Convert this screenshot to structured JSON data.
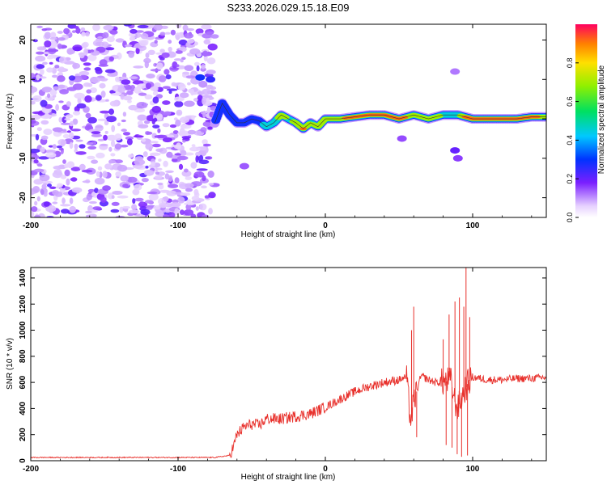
{
  "title": "S233.2026.029.15.18.E09",
  "chart_data": [
    {
      "type": "heatmap",
      "xlabel": "Height of straight line (km)",
      "ylabel": "Frequency (Hz)",
      "xlim": [
        -200,
        150
      ],
      "ylim": [
        -25,
        24
      ],
      "xticks": [
        -200,
        -100,
        0,
        100
      ],
      "yticks": [
        -20,
        -10,
        0,
        10,
        20
      ],
      "colorbar": {
        "label": "Normalized spectral amplitude",
        "range": [
          0,
          1
        ],
        "ticks": [
          0.0,
          0.2,
          0.4,
          0.6,
          0.8
        ]
      },
      "noise_region_x": [
        -200,
        -75
      ],
      "signal_trace": {
        "x": [
          -75,
          -70,
          -65,
          -60,
          -55,
          -50,
          -45,
          -40,
          -35,
          -30,
          -25,
          -20,
          -15,
          -10,
          -5,
          0,
          10,
          20,
          30,
          40,
          50,
          60,
          70,
          80,
          85,
          90,
          95,
          100,
          110,
          120,
          130,
          140,
          150
        ],
        "freq": [
          -1,
          4,
          1,
          -1,
          -1,
          0,
          -0.5,
          -2,
          -1,
          1,
          0,
          -1,
          -2.5,
          -1,
          -2,
          0,
          0,
          0.5,
          1,
          1,
          0,
          1,
          0,
          1,
          1,
          1,
          0.5,
          0,
          0,
          0,
          0,
          0.5,
          0.5
        ],
        "amp": [
          0.25,
          0.3,
          0.35,
          0.3,
          0.3,
          0.35,
          0.35,
          0.45,
          0.55,
          0.7,
          0.6,
          0.65,
          0.85,
          0.6,
          0.7,
          0.65,
          0.8,
          0.9,
          0.95,
          0.9,
          0.85,
          0.8,
          0.75,
          0.6,
          0.5,
          0.55,
          0.85,
          0.95,
          0.9,
          0.95,
          0.95,
          0.85,
          0.8
        ]
      }
    },
    {
      "type": "line",
      "xlabel": "Height of straight line (km)",
      "ylabel": "SNR (10 * v/v)",
      "xlim": [
        -200,
        150
      ],
      "ylim": [
        0,
        1480
      ],
      "xticks": [
        -200,
        -100,
        0,
        100
      ],
      "yticks": [
        0,
        200,
        400,
        600,
        800,
        1000,
        1200,
        1400
      ],
      "color": "#e8302b",
      "series": [
        {
          "name": "SNR",
          "x": [
            -200,
            -150,
            -100,
            -75,
            -65,
            -62,
            -60,
            -55,
            -50,
            -45,
            -40,
            -30,
            -20,
            -10,
            0,
            10,
            20,
            30,
            40,
            50,
            55,
            58,
            60,
            65,
            70,
            75,
            80,
            85,
            88,
            90,
            93,
            95,
            97,
            100,
            110,
            120,
            130,
            140,
            150
          ],
          "y": [
            25,
            25,
            25,
            25,
            40,
            120,
            200,
            260,
            280,
            270,
            320,
            320,
            340,
            360,
            410,
            470,
            530,
            570,
            600,
            620,
            640,
            300,
            450,
            650,
            620,
            600,
            600,
            620,
            450,
            400,
            500,
            550,
            600,
            640,
            620,
            620,
            630,
            630,
            640
          ]
        }
      ],
      "spikes": [
        {
          "x": 58.5,
          "y": 1000
        },
        {
          "x": 60,
          "y": 1180
        },
        {
          "x": 62,
          "y": 180
        },
        {
          "x": 80,
          "y": 930
        },
        {
          "x": 82,
          "y": 120
        },
        {
          "x": 84,
          "y": 1120
        },
        {
          "x": 86,
          "y": 100
        },
        {
          "x": 88,
          "y": 1220
        },
        {
          "x": 89.5,
          "y": 50
        },
        {
          "x": 91,
          "y": 1250
        },
        {
          "x": 92.5,
          "y": 30
        },
        {
          "x": 94,
          "y": 1180
        },
        {
          "x": 95.5,
          "y": 1480
        },
        {
          "x": 96.5,
          "y": 40
        },
        {
          "x": 98,
          "y": 1100
        }
      ]
    }
  ]
}
